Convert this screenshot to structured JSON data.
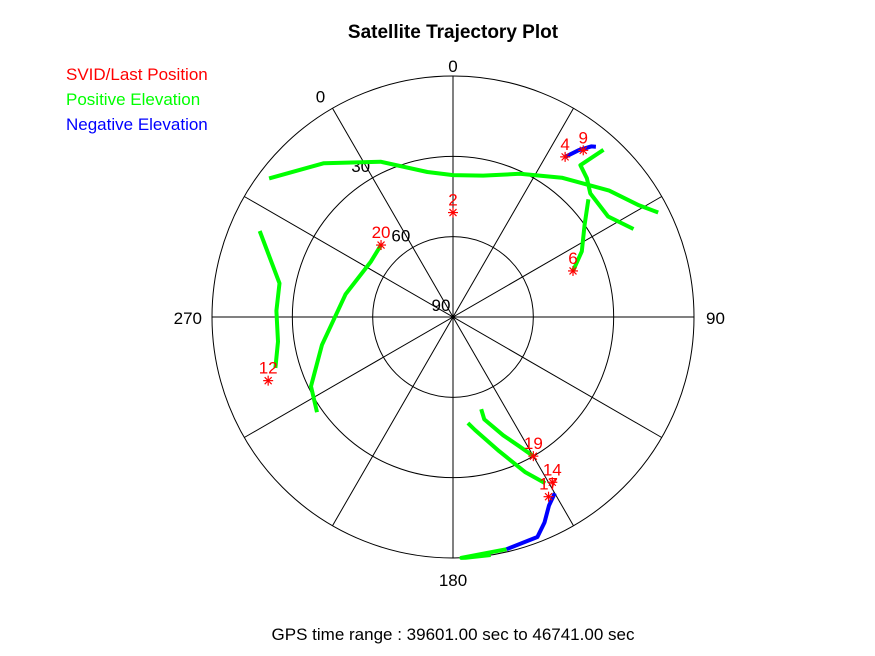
{
  "chart_data": {
    "type": "polar-trajectory",
    "title": "Satellite Trajectory Plot",
    "footer": "GPS time range : 39601.00 sec to 46741.00 sec",
    "elevation_rings": [
      0,
      30,
      60,
      90
    ],
    "elevation_labels": [
      "0",
      "30",
      "60",
      "90"
    ],
    "azimuth_labels": [
      {
        "az": 0,
        "label": "0"
      },
      {
        "az": 90,
        "label": "90"
      },
      {
        "az": 180,
        "label": "180"
      },
      {
        "az": 270,
        "label": "270"
      }
    ],
    "legend": [
      {
        "label": "SVID/Last Position",
        "color": "#ff0000"
      },
      {
        "label": "Positive Elevation",
        "color": "#00ff00"
      },
      {
        "label": "Negative Elevation",
        "color": "#0000ff"
      }
    ],
    "colors": {
      "last_position": "#ff0000",
      "positive": "#00ff00",
      "negative": "#0000ff"
    },
    "satellites": [
      {
        "svid": "2",
        "last": [
          0,
          51
        ],
        "positive": [
          [
            -53,
            4
          ],
          [
            -40,
            15
          ],
          [
            -25,
            26
          ],
          [
            -10,
            35
          ],
          [
            0,
            37
          ],
          [
            12,
            36
          ],
          [
            25,
            31
          ],
          [
            38,
            24
          ],
          [
            51,
            15
          ],
          [
            59,
            9
          ],
          [
            63,
            4
          ]
        ],
        "negative": []
      },
      {
        "svid": "4",
        "last": [
          35,
          17
        ],
        "positive": [],
        "negative": [
          [
            35,
            17
          ],
          [
            37,
            12
          ],
          [
            39,
            8
          ],
          [
            40,
            7
          ]
        ]
      },
      {
        "svid": "6",
        "last": [
          69,
          42
        ],
        "positive": [
          [
            69,
            42
          ],
          [
            63,
            36
          ],
          [
            55,
            30
          ],
          [
            49,
            23
          ]
        ],
        "negative": []
      },
      {
        "svid": "9",
        "last": [
          38,
          11
        ],
        "positive": [
          [
            42,
            6
          ],
          [
            40,
            16
          ],
          [
            44,
            18
          ],
          [
            48,
            21
          ],
          [
            57,
            21
          ],
          [
            64,
            15
          ]
        ],
        "negative": []
      },
      {
        "svid": "12",
        "last": [
          251,
          17
        ],
        "positive": [
          [
            254,
            21
          ],
          [
            262,
            24
          ],
          [
            272,
            24
          ],
          [
            281,
            24
          ],
          [
            294,
            11
          ]
        ],
        "negative": []
      },
      {
        "svid": "14",
        "last": [
          149,
          18
        ],
        "positive": [
          [
            151,
            19
          ],
          [
            155,
            26
          ],
          [
            161,
            37
          ],
          [
            169,
            47
          ],
          [
            172,
            50
          ]
        ],
        "negative": []
      },
      {
        "svid": "17",
        "last": [
          152,
          14
        ],
        "positive": [
          [
            167,
            1
          ],
          [
            178,
            0
          ],
          [
            177,
            0
          ],
          [
            171,
            0
          ]
        ],
        "negative": [
          [
            150,
            14
          ],
          [
            153,
            11
          ],
          [
            156,
            6
          ],
          [
            159,
            2
          ],
          [
            167,
            1
          ]
        ]
      },
      {
        "svid": "19",
        "last": [
          150,
          30
        ],
        "positive": [
          [
            150,
            30
          ],
          [
            153,
            36
          ],
          [
            157,
            42
          ],
          [
            163,
            50
          ],
          [
            163,
            54
          ]
        ],
        "negative": []
      },
      {
        "svid": "20",
        "last": [
          315,
          52
        ],
        "positive": [
          [
            235,
            28
          ],
          [
            244,
            31
          ],
          [
            258,
            40
          ],
          [
            282,
            49
          ],
          [
            304,
            53
          ],
          [
            315,
            52
          ]
        ],
        "negative": []
      }
    ]
  }
}
